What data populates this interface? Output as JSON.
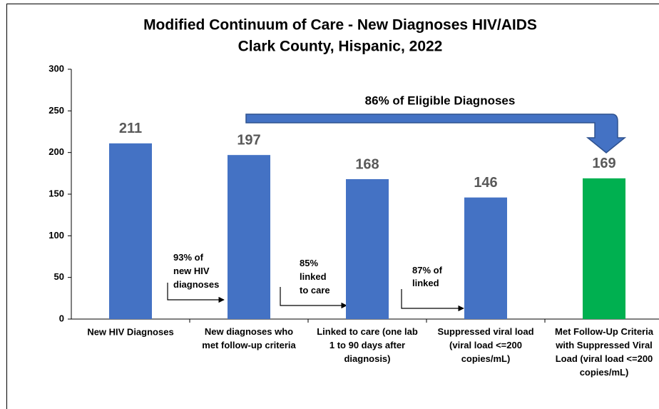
{
  "chart_data": {
    "type": "bar",
    "title": "Modified Continuum of Care - New Diagnoses HIV/AIDS",
    "subtitle": "Clark County, Hispanic, 2022",
    "categories": [
      "New HIV Diagnoses",
      "New diagnoses who\nmet follow-up criteria",
      "Linked to care (one lab\n1 to 90 days after\ndiagnosis)",
      "Suppressed viral load\n(viral load <=200\ncopies/mL)",
      "Met Follow-Up Criteria\nwith Suppressed Viral\nLoad (viral load <=200\ncopies/mL)"
    ],
    "values": [
      211,
      197,
      168,
      146,
      169
    ],
    "colors": [
      "#4472c4",
      "#4472c4",
      "#4472c4",
      "#4472c4",
      "#00b050"
    ],
    "ylim": [
      0,
      300
    ],
    "yticks": [
      0,
      50,
      100,
      150,
      200,
      250,
      300
    ],
    "grid": false,
    "annotations": [
      "93% of\nnew HIV\ndiagnoses",
      "85%\nlinked\nto care",
      "87% of\nlinked",
      "86% of Eligible Diagnoses"
    ]
  }
}
